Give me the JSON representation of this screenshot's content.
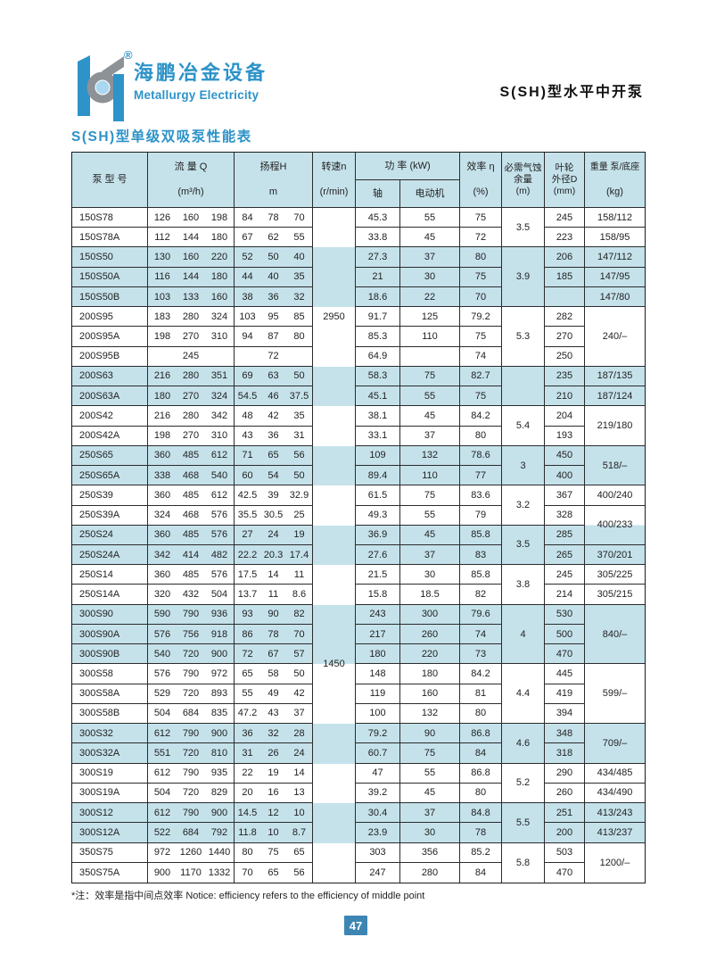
{
  "page": {
    "brand": {
      "logo_cn": "海鹏冶金设备",
      "logo_en": "Metallurgy Electricity",
      "registered_mark": "®"
    },
    "header_right_title": "S(SH)型水平中开泵",
    "section_title": "S(SH)型单级双吸泵性能表",
    "footnote": "*注：效率是指中间点效率  Notice: efficiency refers to the efficiency of middle point",
    "page_number": "47"
  },
  "colors": {
    "stripe_blue": "#c5e2eb",
    "title_blue": "#2d93c8",
    "logo_gray": "#8d9297",
    "logo_light_blue": "#a9d7ef",
    "page_badge_blue": "#3d86b4",
    "border_dark": "#1c1c1c"
  },
  "table": {
    "headers": {
      "model": "泵 型 号",
      "flow_title": "流 量 Q",
      "flow_unit": "(m³/h)",
      "head_title": "扬程H",
      "head_unit": "m",
      "speed_title": "转速n",
      "speed_unit": "(r/min)",
      "power_title": "功 率 (kW)",
      "power_shaft": "轴",
      "power_motor": "电动机",
      "eff_title": "效率 η",
      "eff_unit": "(%)",
      "npsh_l1": "必需气蚀",
      "npsh_l2": "余量",
      "npsh_unit": "(m)",
      "impeller_l1": "叶轮",
      "impeller_l2": "外径D",
      "impeller_unit": "(mm)",
      "weight_title": "重量 泵/底座",
      "weight_unit": "(kg)"
    },
    "speed_values": [
      {
        "row": 5,
        "label": "2950"
      },
      {
        "row": 23,
        "label": "1450",
        "at_boundary": true
      }
    ],
    "groups": [
      {
        "rows": 2,
        "npsh": "3.5"
      },
      {
        "rows": 3,
        "npsh": "3.9"
      },
      {
        "rows": 3,
        "npsh": "5.3"
      },
      {
        "rows": 2,
        "npsh": ""
      },
      {
        "rows": 2,
        "npsh": "5.4"
      },
      {
        "rows": 2,
        "npsh": "3"
      },
      {
        "rows": 2,
        "npsh": "3.2"
      },
      {
        "rows": 2,
        "npsh": "3.5"
      },
      {
        "rows": 2,
        "npsh": "3.8"
      },
      {
        "rows": 3,
        "npsh": "4"
      },
      {
        "rows": 3,
        "npsh": "4.4"
      },
      {
        "rows": 2,
        "npsh": "4.6"
      },
      {
        "rows": 2,
        "npsh": "5.2"
      },
      {
        "rows": 2,
        "npsh": "5.5"
      },
      {
        "rows": 2,
        "npsh": "5.8"
      }
    ],
    "rows": [
      {
        "model": "150S78",
        "flow": [
          "126",
          "160",
          "198"
        ],
        "head": [
          "84",
          "78",
          "70"
        ],
        "shaft": "45.3",
        "motor": "55",
        "eff": "75",
        "impeller": "245"
      },
      {
        "model": "150S78A",
        "flow": [
          "112",
          "144",
          "180"
        ],
        "head": [
          "67",
          "62",
          "55"
        ],
        "shaft": "33.8",
        "motor": "45",
        "eff": "72",
        "impeller": "223"
      },
      {
        "model": "150S50",
        "flow": [
          "130",
          "160",
          "220"
        ],
        "head": [
          "52",
          "50",
          "40"
        ],
        "shaft": "27.3",
        "motor": "37",
        "eff": "80",
        "impeller": "206"
      },
      {
        "model": "150S50A",
        "flow": [
          "116",
          "144",
          "180"
        ],
        "head": [
          "44",
          "40",
          "35"
        ],
        "shaft": "21",
        "motor": "30",
        "eff": "75",
        "impeller": "185"
      },
      {
        "model": "150S50B",
        "flow": [
          "103",
          "133",
          "160"
        ],
        "head": [
          "38",
          "36",
          "32"
        ],
        "shaft": "18.6",
        "motor": "22",
        "eff": "70",
        "impeller": ""
      },
      {
        "model": "200S95",
        "flow": [
          "183",
          "280",
          "324"
        ],
        "head": [
          "103",
          "95",
          "85"
        ],
        "shaft": "91.7",
        "motor": "125",
        "eff": "79.2",
        "impeller": "282"
      },
      {
        "model": "200S95A",
        "flow": [
          "198",
          "270",
          "310"
        ],
        "head": [
          "94",
          "87",
          "80"
        ],
        "shaft": "85.3",
        "motor": "110",
        "eff": "75",
        "impeller": "270"
      },
      {
        "model": "200S95B",
        "flow": [
          "245"
        ],
        "head": [
          "72"
        ],
        "shaft": "64.9",
        "motor": "",
        "eff": "74",
        "impeller": "250"
      },
      {
        "model": "200S63",
        "flow": [
          "216",
          "280",
          "351"
        ],
        "head": [
          "69",
          "63",
          "50"
        ],
        "shaft": "58.3",
        "motor": "75",
        "eff": "82.7",
        "impeller": "235"
      },
      {
        "model": "200S63A",
        "flow": [
          "180",
          "270",
          "324"
        ],
        "head": [
          "54.5",
          "46",
          "37.5"
        ],
        "shaft": "45.1",
        "motor": "55",
        "eff": "75",
        "impeller": "210"
      },
      {
        "model": "200S42",
        "flow": [
          "216",
          "280",
          "342"
        ],
        "head": [
          "48",
          "42",
          "35"
        ],
        "shaft": "38.1",
        "motor": "45",
        "eff": "84.2",
        "impeller": "204"
      },
      {
        "model": "200S42A",
        "flow": [
          "198",
          "270",
          "310"
        ],
        "head": [
          "43",
          "36",
          "31"
        ],
        "shaft": "33.1",
        "motor": "37",
        "eff": "80",
        "impeller": "193"
      },
      {
        "model": "250S65",
        "flow": [
          "360",
          "485",
          "612"
        ],
        "head": [
          "71",
          "65",
          "56"
        ],
        "shaft": "109",
        "motor": "132",
        "eff": "78.6",
        "impeller": "450"
      },
      {
        "model": "250S65A",
        "flow": [
          "338",
          "468",
          "540"
        ],
        "head": [
          "60",
          "54",
          "50"
        ],
        "shaft": "89.4",
        "motor": "110",
        "eff": "77",
        "impeller": "400"
      },
      {
        "model": "250S39",
        "flow": [
          "360",
          "485",
          "612"
        ],
        "head": [
          "42.5",
          "39",
          "32.9"
        ],
        "shaft": "61.5",
        "motor": "75",
        "eff": "83.6",
        "impeller": "367"
      },
      {
        "model": "250S39A",
        "flow": [
          "324",
          "468",
          "576"
        ],
        "head": [
          "35.5",
          "30.5",
          "25"
        ],
        "shaft": "49.3",
        "motor": "55",
        "eff": "79",
        "impeller": "328"
      },
      {
        "model": "250S24",
        "flow": [
          "360",
          "485",
          "576"
        ],
        "head": [
          "27",
          "24",
          "19"
        ],
        "shaft": "36.9",
        "motor": "45",
        "eff": "85.8",
        "impeller": "285"
      },
      {
        "model": "250S24A",
        "flow": [
          "342",
          "414",
          "482"
        ],
        "head": [
          "22.2",
          "20.3",
          "17.4"
        ],
        "shaft": "27.6",
        "motor": "37",
        "eff": "83",
        "impeller": "265"
      },
      {
        "model": "250S14",
        "flow": [
          "360",
          "485",
          "576"
        ],
        "head": [
          "17.5",
          "14",
          "11"
        ],
        "shaft": "21.5",
        "motor": "30",
        "eff": "85.8",
        "impeller": "245"
      },
      {
        "model": "250S14A",
        "flow": [
          "320",
          "432",
          "504"
        ],
        "head": [
          "13.7",
          "11",
          "8.6"
        ],
        "shaft": "15.8",
        "motor": "18.5",
        "eff": "82",
        "impeller": "214"
      },
      {
        "model": "300S90",
        "flow": [
          "590",
          "790",
          "936"
        ],
        "head": [
          "93",
          "90",
          "82"
        ],
        "shaft": "243",
        "motor": "300",
        "eff": "79.6",
        "impeller": "530"
      },
      {
        "model": "300S90A",
        "flow": [
          "576",
          "756",
          "918"
        ],
        "head": [
          "86",
          "78",
          "70"
        ],
        "shaft": "217",
        "motor": "260",
        "eff": "74",
        "impeller": "500"
      },
      {
        "model": "300S90B",
        "flow": [
          "540",
          "720",
          "900"
        ],
        "head": [
          "72",
          "67",
          "57"
        ],
        "shaft": "180",
        "motor": "220",
        "eff": "73",
        "impeller": "470"
      },
      {
        "model": "300S58",
        "flow": [
          "576",
          "790",
          "972"
        ],
        "head": [
          "65",
          "58",
          "50"
        ],
        "shaft": "148",
        "motor": "180",
        "eff": "84.2",
        "impeller": "445"
      },
      {
        "model": "300S58A",
        "flow": [
          "529",
          "720",
          "893"
        ],
        "head": [
          "55",
          "49",
          "42"
        ],
        "shaft": "119",
        "motor": "160",
        "eff": "81",
        "impeller": "419"
      },
      {
        "model": "300S58B",
        "flow": [
          "504",
          "684",
          "835"
        ],
        "head": [
          "47.2",
          "43",
          "37"
        ],
        "shaft": "100",
        "motor": "132",
        "eff": "80",
        "impeller": "394"
      },
      {
        "model": "300S32",
        "flow": [
          "612",
          "790",
          "900"
        ],
        "head": [
          "36",
          "32",
          "28"
        ],
        "shaft": "79.2",
        "motor": "90",
        "eff": "86.8",
        "impeller": "348"
      },
      {
        "model": "300S32A",
        "flow": [
          "551",
          "720",
          "810"
        ],
        "head": [
          "31",
          "26",
          "24"
        ],
        "shaft": "60.7",
        "motor": "75",
        "eff": "84",
        "impeller": "318"
      },
      {
        "model": "300S19",
        "flow": [
          "612",
          "790",
          "935"
        ],
        "head": [
          "22",
          "19",
          "14"
        ],
        "shaft": "47",
        "motor": "55",
        "eff": "86.8",
        "impeller": "290"
      },
      {
        "model": "300S19A",
        "flow": [
          "504",
          "720",
          "829"
        ],
        "head": [
          "20",
          "16",
          "13"
        ],
        "shaft": "39.2",
        "motor": "45",
        "eff": "80",
        "impeller": "260"
      },
      {
        "model": "300S12",
        "flow": [
          "612",
          "790",
          "900"
        ],
        "head": [
          "14.5",
          "12",
          "10"
        ],
        "shaft": "30.4",
        "motor": "37",
        "eff": "84.8",
        "impeller": "251"
      },
      {
        "model": "300S12A",
        "flow": [
          "522",
          "684",
          "792"
        ],
        "head": [
          "11.8",
          "10",
          "8.7"
        ],
        "shaft": "23.9",
        "motor": "30",
        "eff": "78",
        "impeller": "200"
      },
      {
        "model": "350S75",
        "flow": [
          "972",
          "1260",
          "1440"
        ],
        "head": [
          "80",
          "75",
          "65"
        ],
        "shaft": "303",
        "motor": "356",
        "eff": "85.2",
        "impeller": "503"
      },
      {
        "model": "350S75A",
        "flow": [
          "900",
          "1170",
          "1332"
        ],
        "head": [
          "70",
          "65",
          "56"
        ],
        "shaft": "247",
        "motor": "280",
        "eff": "84",
        "impeller": "470"
      }
    ],
    "weight_cells": [
      {
        "span": 1,
        "value": "158/112"
      },
      {
        "span": 1,
        "value": "158/95"
      },
      {
        "span": 1,
        "value": "147/112"
      },
      {
        "span": 1,
        "value": "147/95"
      },
      {
        "span": 1,
        "value": "147/80"
      },
      {
        "span": 3,
        "value": "240/–"
      },
      {
        "span": 1,
        "value": "187/135"
      },
      {
        "span": 1,
        "value": "187/124"
      },
      {
        "span": 2,
        "value": "219/180"
      },
      {
        "span": 2,
        "value": "518/–"
      },
      {
        "span": 1,
        "value": "400/240"
      },
      {
        "span": 2,
        "value": "400/233"
      },
      {
        "span": 1,
        "value": "370/201"
      },
      {
        "span": 1,
        "value": "305/225"
      },
      {
        "span": 1,
        "value": "305/215"
      },
      {
        "span": 3,
        "value": "840/–"
      },
      {
        "span": 3,
        "value": "599/–"
      },
      {
        "span": 2,
        "value": "709/–"
      },
      {
        "span": 1,
        "value": "434/485"
      },
      {
        "span": 1,
        "value": "434/490"
      },
      {
        "span": 1,
        "value": "413/243"
      },
      {
        "span": 1,
        "value": "413/237"
      },
      {
        "span": 2,
        "value": "1200/–"
      }
    ]
  }
}
